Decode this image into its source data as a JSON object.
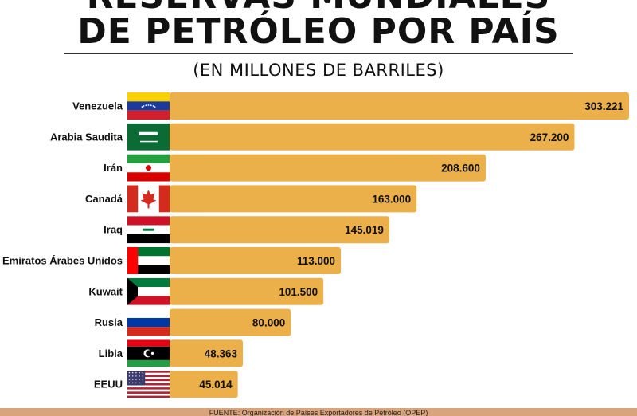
{
  "header": {
    "title_line1": "RESERVAS MUNDIALES",
    "title_line2": "DE PETRÓLEO POR PAÍS",
    "subtitle": "(EN MILLONES DE BARRILES)"
  },
  "footer": {
    "source": "FUENTE: Organización de Países Exportadores de Petróleo (OPEP)"
  },
  "colors": {
    "bar": "#ebb04a",
    "footer_band": "#d9a37b"
  },
  "chart_data": {
    "type": "bar",
    "orientation": "horizontal",
    "categories": [
      "Venezuela",
      "Arabia Saudita",
      "Irán",
      "Canadá",
      "Iraq",
      "Emiratos Árabes Unidos",
      "Kuwait",
      "Rusia",
      "Libia",
      "EEUU"
    ],
    "values": [
      303221,
      267200,
      208600,
      163000,
      145019,
      113000,
      101500,
      80000,
      48363,
      45014
    ],
    "value_labels": [
      "303.221",
      "267.200",
      "208.600",
      "163.000",
      "145.019",
      "113.000",
      "101.500",
      "80.000",
      "48.363",
      "45.014"
    ],
    "flags": [
      "venezuela-flag-icon",
      "saudi-arabia-flag-icon",
      "iran-flag-icon",
      "canada-flag-icon",
      "iraq-flag-icon",
      "uae-flag-icon",
      "kuwait-flag-icon",
      "russia-flag-icon",
      "libya-flag-icon",
      "usa-flag-icon"
    ],
    "title": "RESERVAS MUNDIALES DE PETRÓLEO POR PAÍS",
    "subtitle": "(EN MILLONES DE BARRILES)",
    "xlabel": "",
    "ylabel": "",
    "xlim": [
      0,
      303221
    ],
    "grid": false,
    "legend": "none"
  }
}
